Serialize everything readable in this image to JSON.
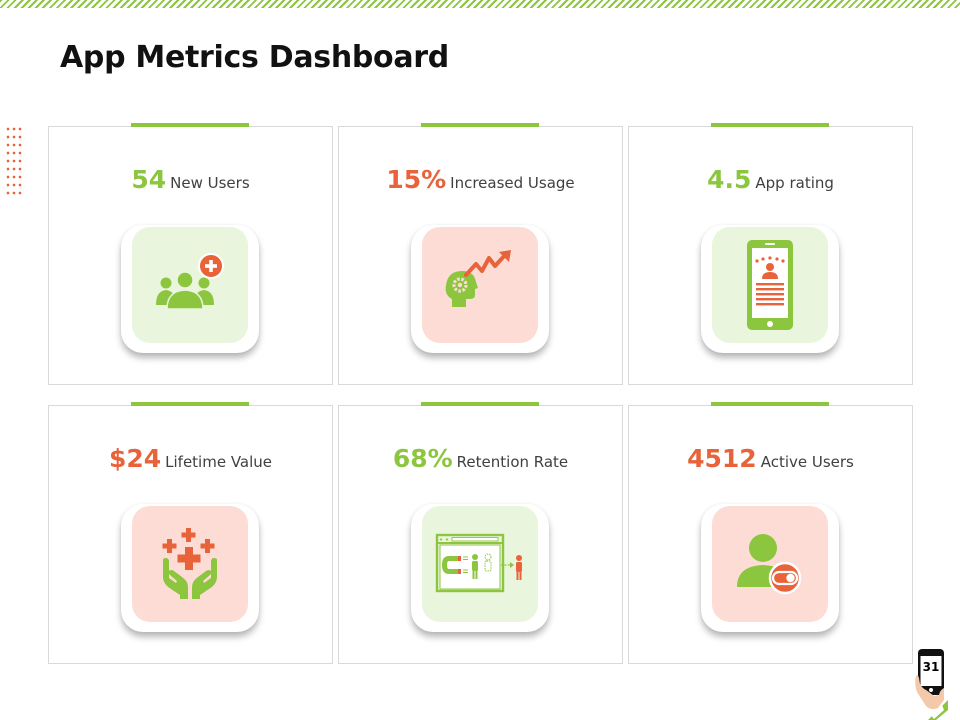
{
  "page": {
    "title": "App Metrics Dashboard",
    "page_number": "31"
  },
  "colors": {
    "green": "#8cc63f",
    "orange_red": "#e8623a",
    "green_tile": "#e9f5dc",
    "red_tile": "#fcdcd4"
  },
  "cards": [
    {
      "value": "54",
      "label": "New Users",
      "value_color": "green",
      "tile": "green",
      "icon": "user-group-add-icon"
    },
    {
      "value": "15%",
      "label": "Increased Usage",
      "value_color": "orange_red",
      "tile": "red",
      "icon": "head-gear-growth-icon"
    },
    {
      "value": "4.5",
      "label": "App rating",
      "value_color": "green",
      "tile": "green",
      "icon": "phone-rating-icon"
    },
    {
      "value": "$24",
      "label": "Lifetime Value",
      "value_color": "orange_red",
      "tile": "red",
      "icon": "hands-plus-icon"
    },
    {
      "value": "68%",
      "label": "Retention Rate",
      "value_color": "green",
      "tile": "green",
      "icon": "browser-magnet-icon"
    },
    {
      "value": "4512",
      "label": "Active Users",
      "value_color": "orange_red",
      "tile": "red",
      "icon": "active-user-toggle-icon"
    }
  ]
}
